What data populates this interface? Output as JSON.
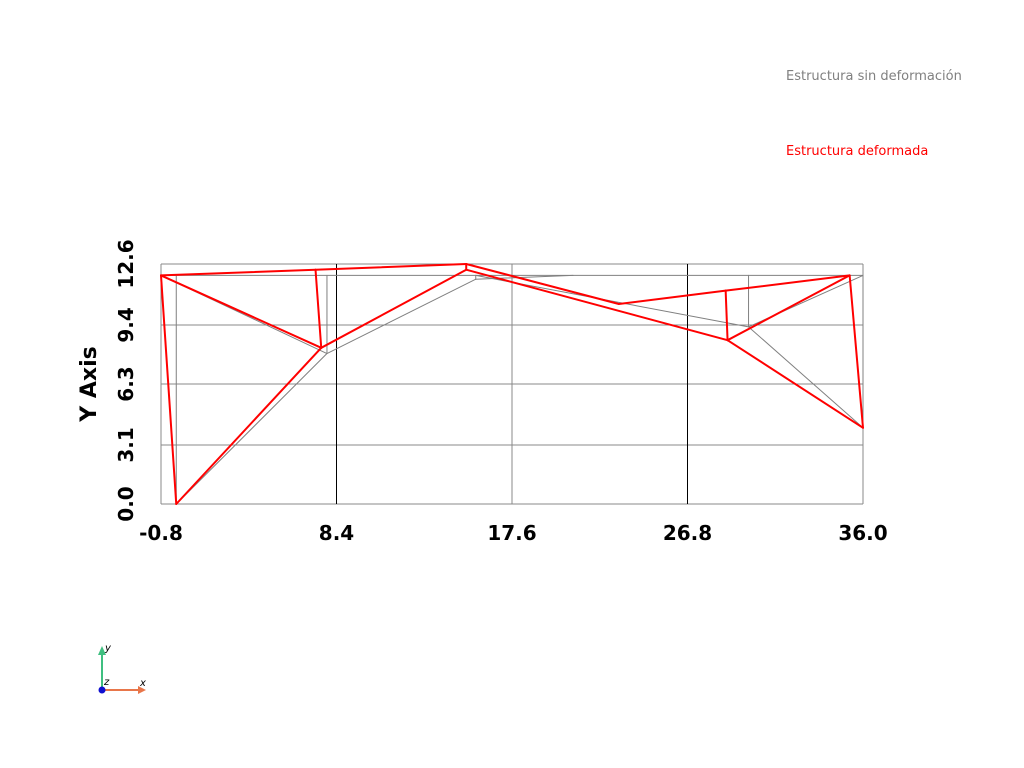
{
  "legend": {
    "undeformed_label": "Estructura sin deformación",
    "deformed_label": "Estructura deformada"
  },
  "colors": {
    "undeformed": "#808080",
    "deformed": "#ff0000",
    "grid": "#888888",
    "triad_x": "#e8764a",
    "triad_y": "#3fbf80",
    "triad_z": "#1010d0"
  },
  "axes": {
    "ylabel": "Y Axis",
    "x_ticks": [
      "-0.8",
      "8.4",
      "17.6",
      "26.8",
      "36.0"
    ],
    "y_ticks": [
      "0.0",
      "3.1",
      "6.3",
      "9.4",
      "12.6"
    ],
    "xlim": [
      -0.8,
      36.0
    ],
    "ylim": [
      0.0,
      12.6
    ]
  },
  "triad": {
    "x_label": "x",
    "y_label": "y",
    "z_label": "z"
  },
  "chart_data": {
    "type": "diagram",
    "series": [
      {
        "name": "Estructura sin deformación",
        "segments": [
          [
            [
              -0.8,
              12.0
            ],
            [
              0.0,
              0.0
            ]
          ],
          [
            [
              0.0,
              0.0
            ],
            [
              7.9,
              7.9
            ]
          ],
          [
            [
              -0.8,
              12.0
            ],
            [
              7.9,
              7.9
            ]
          ],
          [
            [
              0.0,
              0.0
            ],
            [
              0.0,
              12.0
            ]
          ],
          [
            [
              7.9,
              7.9
            ],
            [
              7.9,
              12.0
            ]
          ],
          [
            [
              7.9,
              7.9
            ],
            [
              15.7,
              11.8
            ]
          ],
          [
            [
              15.7,
              11.8
            ],
            [
              15.7,
              12.0
            ]
          ],
          [
            [
              15.7,
              11.8
            ],
            [
              20.8,
              12.0
            ]
          ],
          [
            [
              -0.8,
              12.0
            ],
            [
              36.0,
              12.0
            ]
          ],
          [
            [
              15.7,
              12.0
            ],
            [
              30.0,
              9.3
            ]
          ],
          [
            [
              30.0,
              9.3
            ],
            [
              30.0,
              12.0
            ]
          ],
          [
            [
              30.0,
              9.3
            ],
            [
              36.0,
              12.0
            ]
          ],
          [
            [
              30.0,
              9.3
            ],
            [
              36.0,
              4.0
            ]
          ],
          [
            [
              36.0,
              4.0
            ],
            [
              36.0,
              12.0
            ]
          ]
        ]
      },
      {
        "name": "Estructura deformada",
        "segments": [
          [
            [
              -0.8,
              12.0
            ],
            [
              0.0,
              0.0
            ]
          ],
          [
            [
              0.0,
              0.0
            ],
            [
              7.6,
              8.2
            ]
          ],
          [
            [
              -0.8,
              12.0
            ],
            [
              7.6,
              8.2
            ]
          ],
          [
            [
              7.6,
              8.2
            ],
            [
              7.3,
              12.3
            ]
          ],
          [
            [
              -0.8,
              12.0
            ],
            [
              7.3,
              12.3
            ]
          ],
          [
            [
              7.3,
              12.3
            ],
            [
              15.2,
              12.6
            ]
          ],
          [
            [
              7.6,
              8.2
            ],
            [
              15.2,
              12.3
            ]
          ],
          [
            [
              15.2,
              12.3
            ],
            [
              15.2,
              12.6
            ]
          ],
          [
            [
              15.2,
              12.6
            ],
            [
              23.2,
              10.5
            ]
          ],
          [
            [
              15.2,
              12.3
            ],
            [
              28.9,
              8.6
            ]
          ],
          [
            [
              23.2,
              10.5
            ],
            [
              28.8,
              11.2
            ]
          ],
          [
            [
              28.8,
              11.2
            ],
            [
              28.9,
              8.6
            ]
          ],
          [
            [
              28.8,
              11.2
            ],
            [
              35.3,
              12.0
            ]
          ],
          [
            [
              28.9,
              8.6
            ],
            [
              35.3,
              12.0
            ]
          ],
          [
            [
              35.3,
              12.0
            ],
            [
              36.0,
              4.0
            ]
          ],
          [
            [
              28.9,
              8.6
            ],
            [
              36.0,
              4.0
            ]
          ]
        ]
      }
    ]
  }
}
